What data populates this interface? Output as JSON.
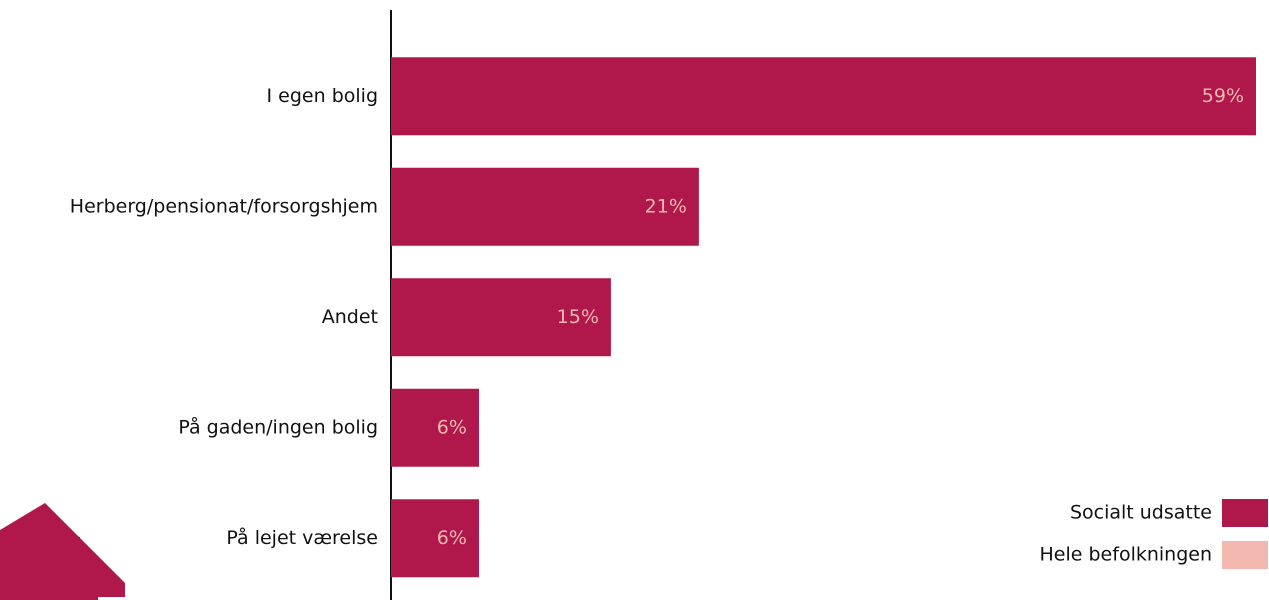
{
  "chart_data": {
    "type": "bar",
    "orientation": "horizontal",
    "categories": [
      "I egen bolig",
      "Herberg/pensionat/forsorgshjem",
      "Andet",
      "På gaden/ingen bolig",
      "På lejet værelse"
    ],
    "series": [
      {
        "name": "Socialt udsatte",
        "color": "#b0184b",
        "values": [
          59,
          21,
          15,
          6,
          6
        ],
        "value_labels": [
          "59%",
          "21%",
          "15%",
          "6%",
          "6%"
        ]
      }
    ],
    "legend": [
      {
        "name": "Socialt udsatte",
        "color": "#b0184b"
      },
      {
        "name": "Hele befolkningen",
        "color": "#f2b8b0"
      }
    ],
    "xlim": [
      0,
      59
    ]
  }
}
